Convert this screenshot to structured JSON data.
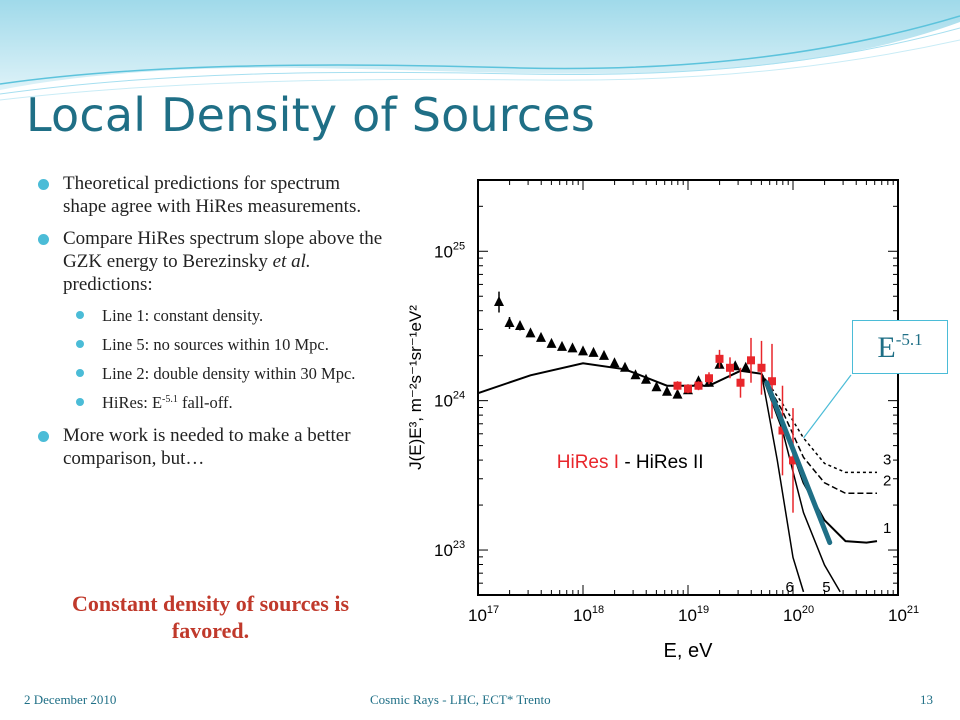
{
  "slide": {
    "title": "Local Density of Sources",
    "bullets": [
      {
        "text": "Theoretical predictions for spectrum shape agree with HiRes measurements."
      },
      {
        "text_before": "Compare HiRes spectrum slope above the GZK energy to Berezinsky ",
        "text_italic": "et al.",
        "text_after": " predictions:"
      },
      {
        "text": "More work is needed to make a better comparison,  but…"
      }
    ],
    "sub_bullets": [
      {
        "text": "Line 1:  constant density."
      },
      {
        "text": "Line 5:  no sources within 10 Mpc."
      },
      {
        "text": "Line 2:  double density within 30 Mpc."
      },
      {
        "text_before": "HiRes:  E",
        "sup": "-5.1",
        "text_after": " fall-off."
      }
    ],
    "conclusion": "Constant density of sources is favored.",
    "callout": {
      "base": "E",
      "sup": "-5.1"
    },
    "footer": {
      "date": "2 December 2010",
      "center": "Cosmic Rays - LHC, ECT* Trento",
      "page": "13"
    },
    "colors": {
      "title": "#1f6f86",
      "bullet": "#4bbcd7",
      "conclusion": "#c0392b",
      "fit_line": "#1f6f86",
      "hires2": "#e8262b",
      "hires1": "#000000"
    }
  },
  "chart_data": {
    "type": "scatter",
    "xlabel": "E, eV",
    "ylabel": "J(E)E³, m⁻²s⁻¹sr⁻¹eV²",
    "xscale": "log",
    "yscale": "log",
    "xlim": [
      1e+17,
      1e+21
    ],
    "ylim": [
      5e+22,
      3e+25
    ],
    "x_ticks": [
      {
        "b": "10",
        "e": "17",
        "v": 17
      },
      {
        "b": "10",
        "e": "18",
        "v": 18
      },
      {
        "b": "10",
        "e": "19",
        "v": 19
      },
      {
        "b": "10",
        "e": "20",
        "v": 20
      },
      {
        "b": "10",
        "e": "21",
        "v": 21
      }
    ],
    "y_ticks": [
      {
        "b": "10",
        "e": "23",
        "v": 23
      },
      {
        "b": "10",
        "e": "24",
        "v": 24
      },
      {
        "b": "10",
        "e": "25",
        "v": 25
      }
    ],
    "annotation": "HiRes I - HiRes II",
    "series": [
      {
        "name": "HiRes I",
        "marker": "triangle",
        "color": "#000000",
        "points": [
          {
            "x": 17.2,
            "y": 24.66,
            "err": 0.07
          },
          {
            "x": 17.3,
            "y": 24.52,
            "err": 0.04
          },
          {
            "x": 17.4,
            "y": 24.5,
            "err": 0.03
          },
          {
            "x": 17.5,
            "y": 24.45,
            "err": 0.02
          },
          {
            "x": 17.6,
            "y": 24.42,
            "err": 0.02
          },
          {
            "x": 17.7,
            "y": 24.38
          },
          {
            "x": 17.8,
            "y": 24.36
          },
          {
            "x": 17.9,
            "y": 24.35
          },
          {
            "x": 18.0,
            "y": 24.33
          },
          {
            "x": 18.1,
            "y": 24.32
          },
          {
            "x": 18.2,
            "y": 24.3
          },
          {
            "x": 18.3,
            "y": 24.25
          },
          {
            "x": 18.4,
            "y": 24.22
          },
          {
            "x": 18.5,
            "y": 24.17
          },
          {
            "x": 18.6,
            "y": 24.14
          },
          {
            "x": 18.7,
            "y": 24.09
          },
          {
            "x": 18.8,
            "y": 24.06
          },
          {
            "x": 18.9,
            "y": 24.04
          },
          {
            "x": 19.0,
            "y": 24.07
          },
          {
            "x": 19.1,
            "y": 24.13
          },
          {
            "x": 19.2,
            "y": 24.12
          },
          {
            "x": 19.3,
            "y": 24.24
          },
          {
            "x": 19.45,
            "y": 24.23
          },
          {
            "x": 19.55,
            "y": 24.22
          }
        ]
      },
      {
        "name": "HiRes II",
        "marker": "square",
        "color": "#e8262b",
        "points": [
          {
            "x": 18.9,
            "y": 24.1,
            "err": 0.03
          },
          {
            "x": 19.0,
            "y": 24.08,
            "err": 0.03
          },
          {
            "x": 19.1,
            "y": 24.1,
            "err": 0.03
          },
          {
            "x": 19.2,
            "y": 24.15,
            "err": 0.04
          },
          {
            "x": 19.3,
            "y": 24.28,
            "err": 0.06
          },
          {
            "x": 19.4,
            "y": 24.22,
            "err": 0.07
          },
          {
            "x": 19.5,
            "y": 24.12,
            "err": 0.1
          },
          {
            "x": 19.6,
            "y": 24.27,
            "err": 0.15
          },
          {
            "x": 19.7,
            "y": 24.22,
            "err": 0.18
          },
          {
            "x": 19.8,
            "y": 24.13,
            "err": 0.25
          },
          {
            "x": 19.9,
            "y": 23.8,
            "err": 0.3
          },
          {
            "x": 20.0,
            "y": 23.6,
            "err": 0.35
          }
        ]
      }
    ],
    "model_curves": [
      {
        "label": "1",
        "points": [
          [
            17.0,
            24.05
          ],
          [
            17.5,
            24.17
          ],
          [
            18.0,
            24.25
          ],
          [
            18.4,
            24.21
          ],
          [
            18.8,
            24.1
          ],
          [
            19.2,
            24.1
          ],
          [
            19.5,
            24.2
          ],
          [
            19.7,
            24.18
          ],
          [
            19.9,
            23.85
          ],
          [
            20.1,
            23.45
          ],
          [
            20.3,
            23.2
          ],
          [
            20.5,
            23.06
          ],
          [
            20.7,
            23.05
          ],
          [
            20.8,
            23.06
          ]
        ]
      },
      {
        "label": "2",
        "points": [
          [
            19.7,
            24.18
          ],
          [
            19.9,
            23.93
          ],
          [
            20.1,
            23.62
          ],
          [
            20.3,
            23.45
          ],
          [
            20.5,
            23.38
          ],
          [
            20.8,
            23.38
          ]
        ]
      },
      {
        "label": "3",
        "points": [
          [
            19.7,
            24.18
          ],
          [
            19.9,
            23.98
          ],
          [
            20.1,
            23.75
          ],
          [
            20.3,
            23.58
          ],
          [
            20.5,
            23.52
          ],
          [
            20.8,
            23.52
          ]
        ]
      },
      {
        "label": "5",
        "points": [
          [
            19.7,
            24.18
          ],
          [
            19.9,
            23.8
          ],
          [
            20.1,
            23.25
          ],
          [
            20.3,
            22.9
          ],
          [
            20.45,
            22.72
          ]
        ]
      },
      {
        "label": "6",
        "points": [
          [
            19.7,
            24.18
          ],
          [
            19.85,
            23.6
          ],
          [
            20.0,
            22.95
          ],
          [
            20.1,
            22.72
          ]
        ]
      }
    ],
    "fit_line": {
      "label": "E⁻⁵·¹",
      "from": [
        19.75,
        24.12
      ],
      "to": [
        20.35,
        23.05
      ]
    }
  }
}
